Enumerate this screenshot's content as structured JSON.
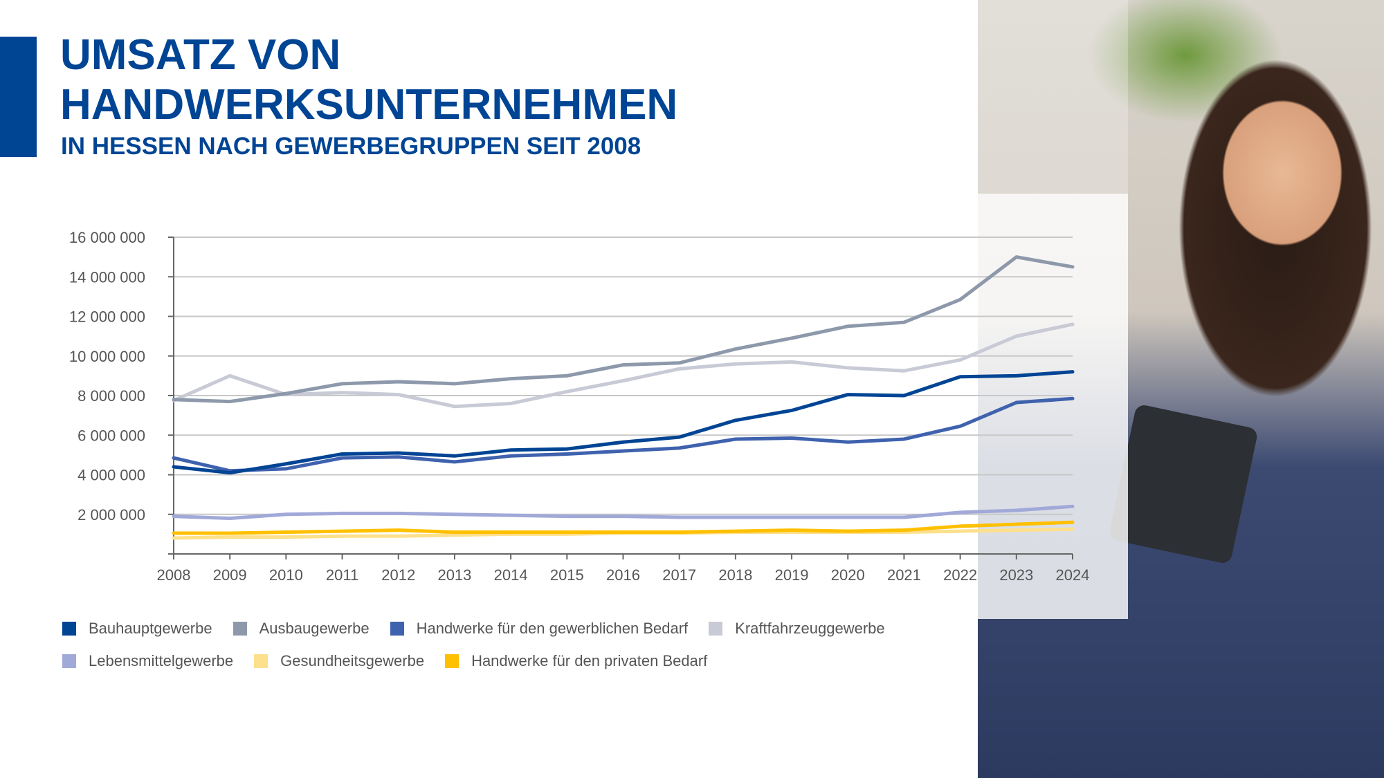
{
  "header": {
    "title_line1": "UMSATZ VON",
    "title_line2": "HANDWERKSUNTERNEHMEN",
    "subtitle": "IN HESSEN NACH GEWERBEGRUPPEN SEIT 2008"
  },
  "chart_data": {
    "type": "line",
    "title": "Umsatz von Handwerksunternehmen in Hessen nach Gewerbegruppen seit 2008",
    "xlabel": "",
    "ylabel": "",
    "x": [
      "2008",
      "2009",
      "2010",
      "2011",
      "2012",
      "2013",
      "2014",
      "2015",
      "2016",
      "2017",
      "2018",
      "2019",
      "2020",
      "2021",
      "2022",
      "2023",
      "2024"
    ],
    "ylim": [
      0,
      16000000
    ],
    "yticks": [
      0,
      2000000,
      4000000,
      6000000,
      8000000,
      10000000,
      12000000,
      14000000,
      16000000
    ],
    "ytick_labels": [
      "",
      "2 000 000",
      "4 000 000",
      "6 000 000",
      "8 000 000",
      "10 000 000",
      "12 000 000",
      "14 000 000",
      "16 000 000"
    ],
    "grid": true,
    "legend_position": "bottom",
    "series": [
      {
        "name": "Bauhauptgewerbe",
        "color": "#004494",
        "values": [
          4400000,
          4100000,
          4550000,
          5050000,
          5100000,
          4950000,
          5250000,
          5300000,
          5650000,
          5900000,
          6750000,
          7250000,
          8050000,
          8000000,
          8950000,
          9000000,
          9200000
        ]
      },
      {
        "name": "Ausbaugewerbe",
        "color": "#8d99ab",
        "values": [
          7800000,
          7700000,
          8100000,
          8600000,
          8700000,
          8600000,
          8850000,
          9000000,
          9550000,
          9650000,
          10350000,
          10900000,
          11500000,
          11700000,
          12850000,
          15000000,
          14500000
        ]
      },
      {
        "name": "Handwerke für den gewerblichen Bedarf",
        "color": "#3f62ae",
        "values": [
          4850000,
          4200000,
          4300000,
          4850000,
          4900000,
          4650000,
          4950000,
          5050000,
          5200000,
          5350000,
          5800000,
          5850000,
          5650000,
          5800000,
          6450000,
          7650000,
          7850000
        ]
      },
      {
        "name": "Kraftfahrzeuggewerbe",
        "color": "#c8cad6",
        "values": [
          7750000,
          9000000,
          8050000,
          8150000,
          8050000,
          7450000,
          7600000,
          8200000,
          8750000,
          9350000,
          9600000,
          9700000,
          9400000,
          9250000,
          9800000,
          11000000,
          11600000
        ]
      },
      {
        "name": "Lebensmittelgewerbe",
        "color": "#a1a9d8",
        "values": [
          1900000,
          1800000,
          2000000,
          2050000,
          2050000,
          2000000,
          1950000,
          1900000,
          1900000,
          1850000,
          1850000,
          1850000,
          1850000,
          1850000,
          2100000,
          2200000,
          2400000
        ]
      },
      {
        "name": "Gesundheitsgewerbe",
        "color": "#fde08c",
        "values": [
          800000,
          850000,
          850000,
          900000,
          900000,
          950000,
          1000000,
          1000000,
          1050000,
          1050000,
          1100000,
          1100000,
          1100000,
          1100000,
          1150000,
          1200000,
          1250000
        ]
      },
      {
        "name": "Handwerke für den privaten Bedarf",
        "color": "#ffc000",
        "values": [
          1050000,
          1050000,
          1100000,
          1150000,
          1200000,
          1100000,
          1100000,
          1100000,
          1100000,
          1100000,
          1150000,
          1200000,
          1150000,
          1200000,
          1400000,
          1500000,
          1600000
        ]
      }
    ]
  }
}
